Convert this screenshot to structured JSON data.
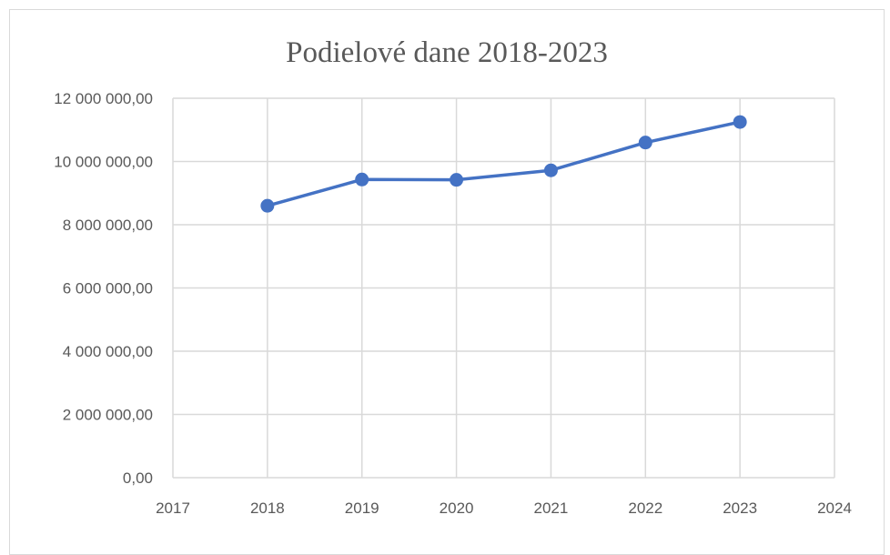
{
  "chart_data": {
    "type": "scatter",
    "title": "Podielové dane 2018-2023",
    "xlabel": "",
    "ylabel": "",
    "xlim": [
      2017,
      2024
    ],
    "ylim": [
      0,
      12000000
    ],
    "x_ticks": [
      2017,
      2018,
      2019,
      2020,
      2021,
      2022,
      2023,
      2024
    ],
    "y_ticks": [
      0,
      2000000,
      4000000,
      6000000,
      8000000,
      10000000,
      12000000
    ],
    "x_tick_labels": [
      "2017",
      "2018",
      "2019",
      "2020",
      "2021",
      "2022",
      "2023",
      "2024"
    ],
    "y_tick_labels": [
      "0,00",
      "2 000 000,00",
      "4 000 000,00",
      "6 000 000,00",
      "8 000 000,00",
      "10 000 000,00",
      "12 000 000,00"
    ],
    "grid": true,
    "legend": "none",
    "series": [
      {
        "color": "#4472c4",
        "x": [
          2018,
          2019,
          2020,
          2021,
          2022,
          2023
        ],
        "y": [
          8600000,
          9430000,
          9420000,
          9720000,
          10600000,
          11250000
        ]
      }
    ]
  }
}
